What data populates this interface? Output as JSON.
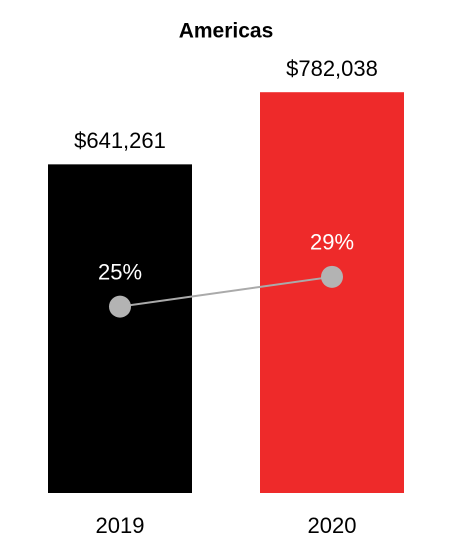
{
  "chart_data": {
    "type": "bar-line",
    "title": "Americas",
    "categories": [
      "2019",
      "2020"
    ],
    "series": [
      {
        "type": "bar",
        "colors": [
          "#000000",
          "#ee2a2a"
        ],
        "values": [
          641261,
          782038
        ],
        "value_labels": [
          "$641,261",
          "$782,038"
        ]
      },
      {
        "type": "line",
        "axis": "y2",
        "color": "#aaaaaa",
        "marker_color": "#b3b3b3",
        "values": [
          25,
          29
        ],
        "value_labels": [
          "25%",
          "29%"
        ]
      }
    ],
    "ylim": [
      0,
      800000
    ],
    "y2lim": [
      0,
      55
    ],
    "grid": false
  }
}
